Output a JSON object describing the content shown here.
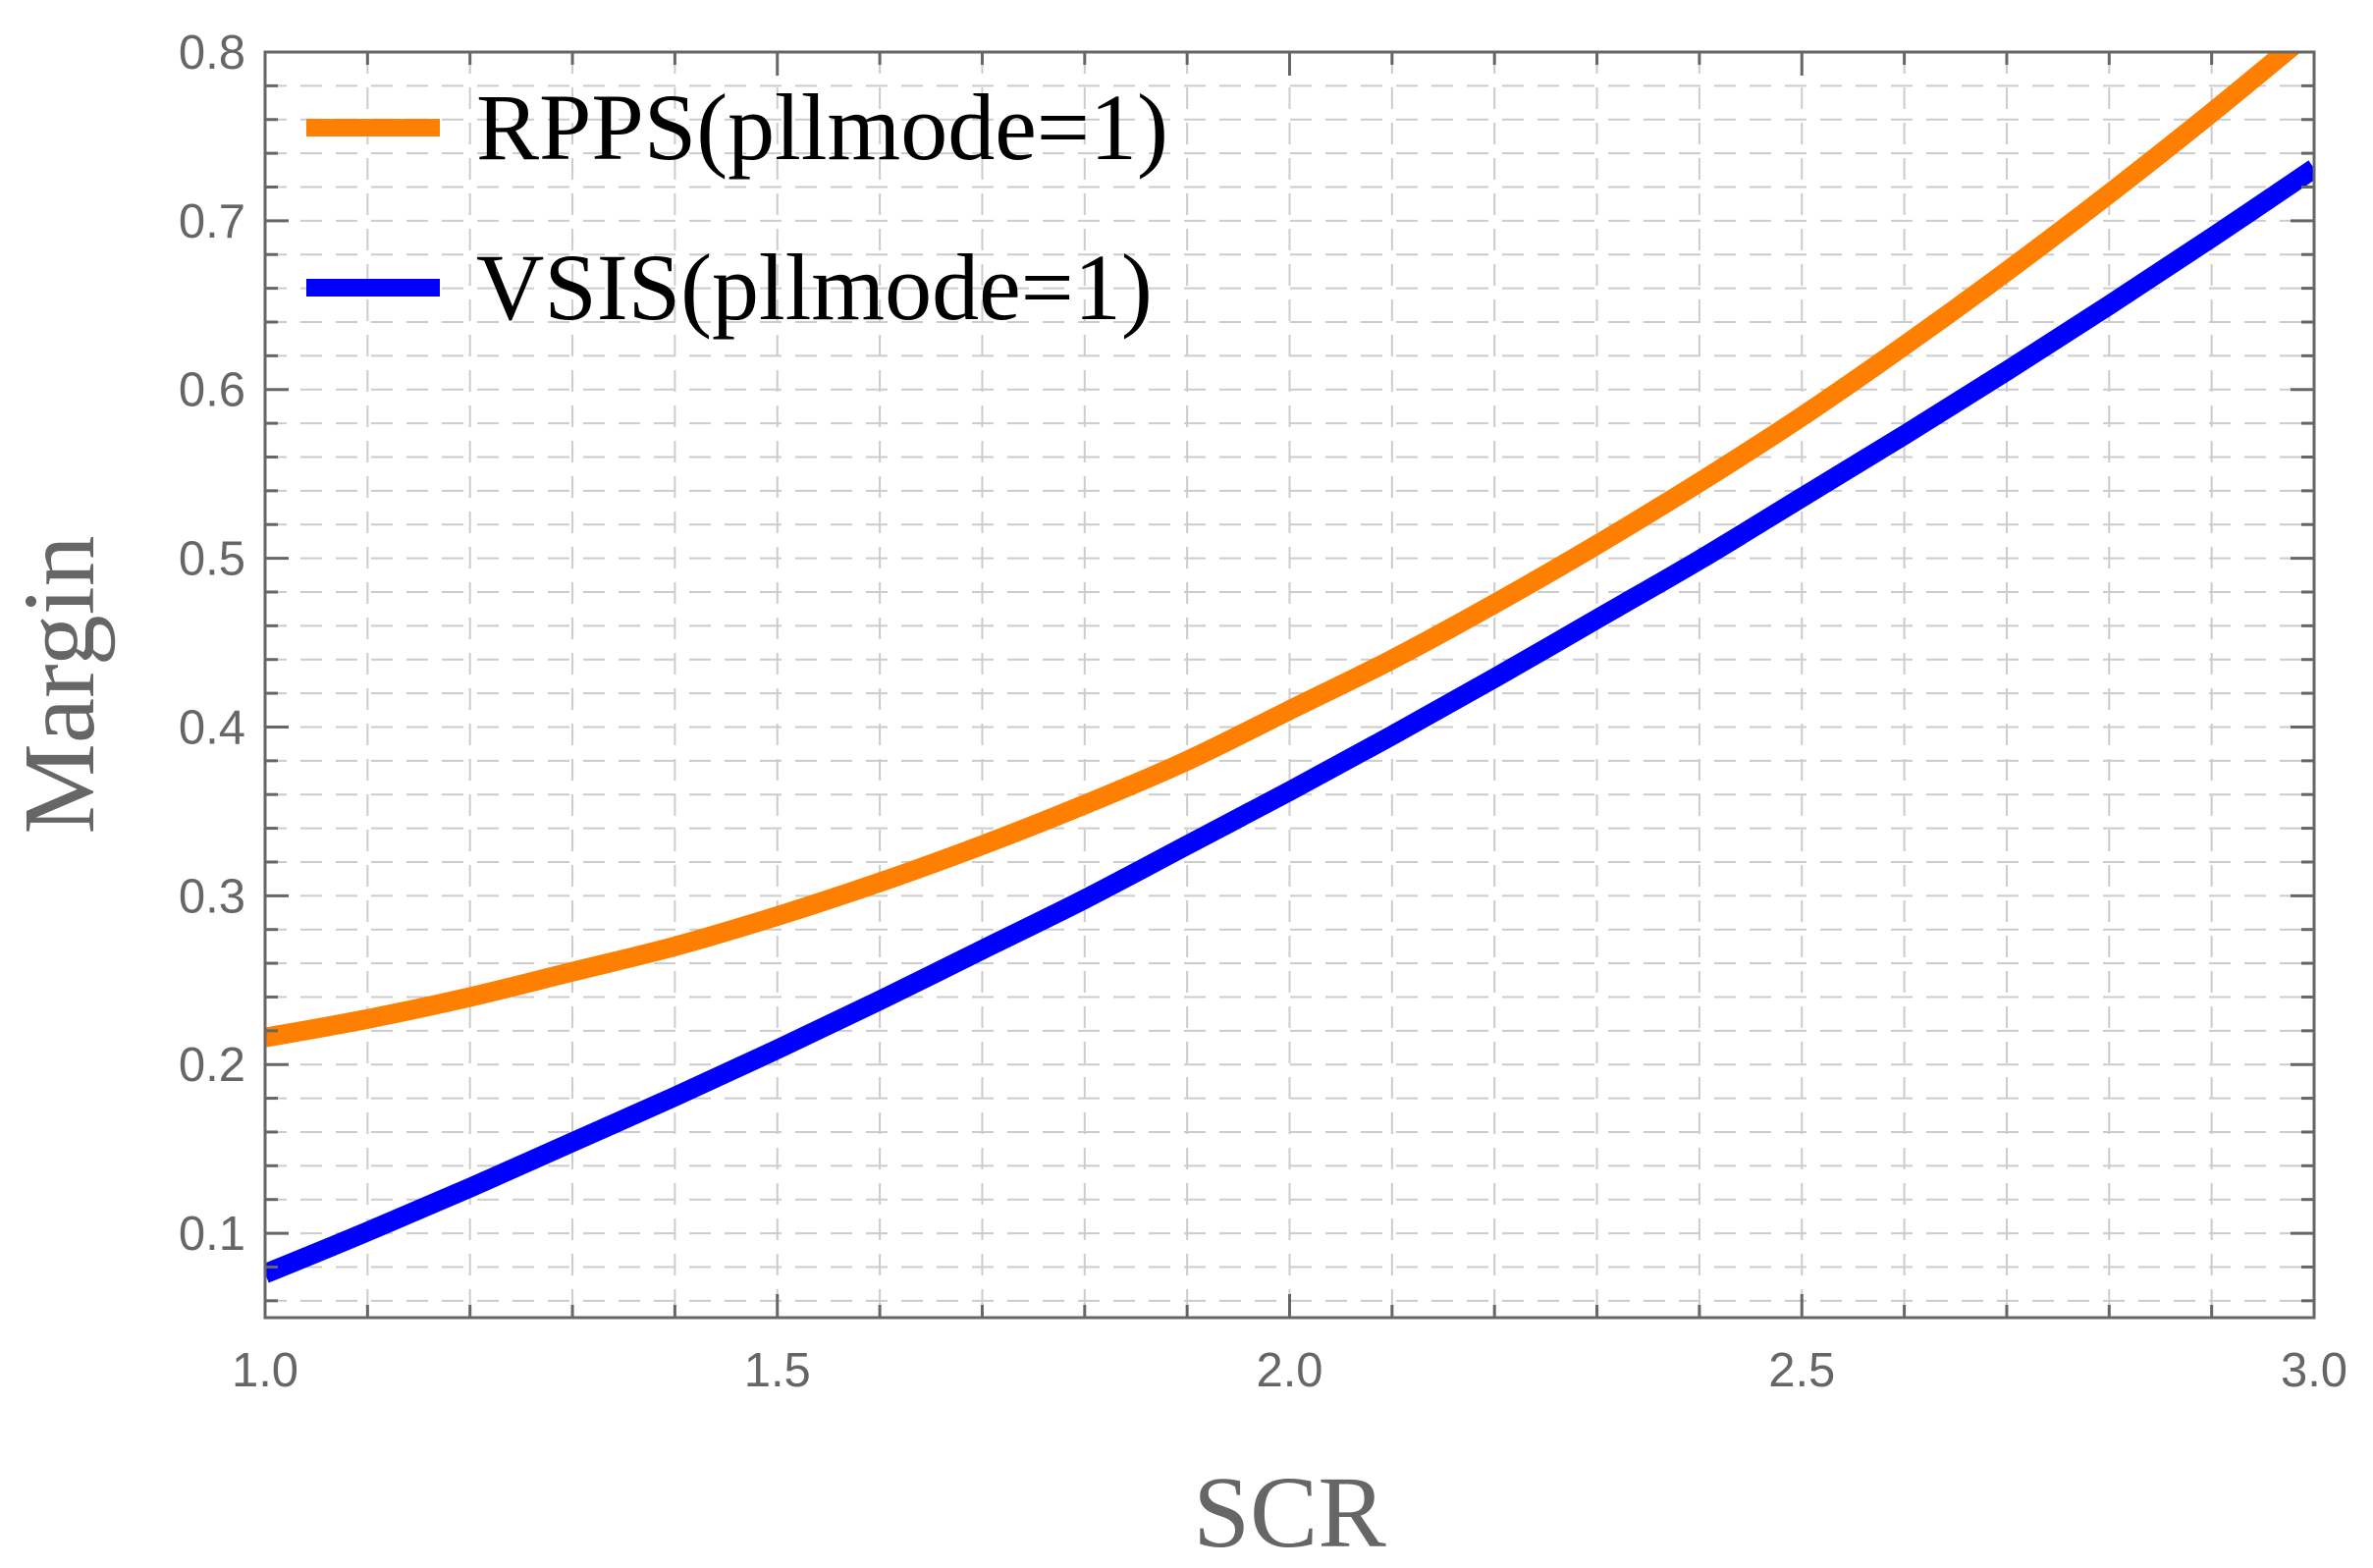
{
  "chart_data": {
    "type": "line",
    "title": "",
    "xlabel": "SCR",
    "ylabel": "Margin",
    "xlim": [
      1.0,
      3.0
    ],
    "ylim": [
      0.05,
      0.8
    ],
    "x_ticks": [
      1.0,
      1.5,
      2.0,
      2.5,
      3.0
    ],
    "x_tick_labels": [
      "1.0",
      "1.5",
      "2.0",
      "2.5",
      "3.0"
    ],
    "y_ticks": [
      0.1,
      0.2,
      0.3,
      0.4,
      0.5,
      0.6,
      0.7,
      0.8
    ],
    "y_tick_labels": [
      "0.1",
      "0.2",
      "0.3",
      "0.4",
      "0.5",
      "0.6",
      "0.7",
      "0.8"
    ],
    "grid": true,
    "legend_position": "top-left",
    "series": [
      {
        "name": "RPPS(pllmode=1)",
        "color": "#ff8000",
        "x": [
          1.0,
          1.1,
          1.2,
          1.3,
          1.4,
          1.5,
          1.6,
          1.7,
          1.8,
          1.9,
          2.0,
          2.1,
          2.2,
          2.3,
          2.4,
          2.5,
          2.6,
          2.7,
          2.8,
          2.9,
          3.0
        ],
        "y": [
          0.216,
          0.227,
          0.24,
          0.255,
          0.27,
          0.288,
          0.308,
          0.33,
          0.354,
          0.38,
          0.41,
          0.44,
          0.473,
          0.508,
          0.545,
          0.584,
          0.626,
          0.67,
          0.716,
          0.764,
          0.814
        ]
      },
      {
        "name": "VSIS(pllmode=1)",
        "color": "#0000ff",
        "x": [
          1.0,
          1.1,
          1.2,
          1.3,
          1.4,
          1.5,
          1.6,
          1.7,
          1.8,
          1.9,
          2.0,
          2.1,
          2.2,
          2.3,
          2.4,
          2.5,
          2.6,
          2.7,
          2.8,
          2.9,
          3.0
        ],
        "y": [
          0.076,
          0.101,
          0.127,
          0.154,
          0.181,
          0.209,
          0.238,
          0.268,
          0.298,
          0.33,
          0.362,
          0.395,
          0.429,
          0.464,
          0.499,
          0.536,
          0.573,
          0.611,
          0.65,
          0.69,
          0.731
        ]
      }
    ]
  }
}
